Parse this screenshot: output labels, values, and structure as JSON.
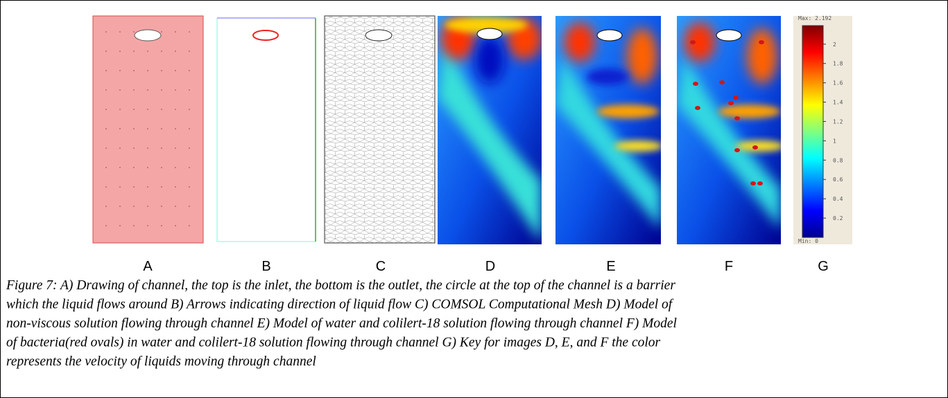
{
  "panels": [
    "A",
    "B",
    "C",
    "D",
    "E",
    "F",
    "G"
  ],
  "colorbar": {
    "max_label": "Max: 2.192",
    "min_label": "Min: 0",
    "range": [
      0,
      2.192
    ],
    "ticks": [
      2,
      1.8,
      1.6,
      1.4,
      1.2,
      1,
      0.8,
      0.6,
      0.4,
      0.2
    ]
  },
  "caption_lines": [
    "Figure 7: A) Drawing of channel, the top is the inlet, the bottom is the outlet, the circle at the top of the channel is a barrier",
    "which the liquid flows around B) Arrows indicating direction of liquid flow C) COMSOL Computational Mesh D) Model of",
    "non-viscous solution flowing through channel E) Model of water and colilert-18 solution flowing through channel F) Model",
    "of bacteria(red ovals)  in water and colilert-18 solution flowing through channel G) Key for images D, E, and F the color",
    "represents the velocity of liquids moving through channel"
  ]
}
